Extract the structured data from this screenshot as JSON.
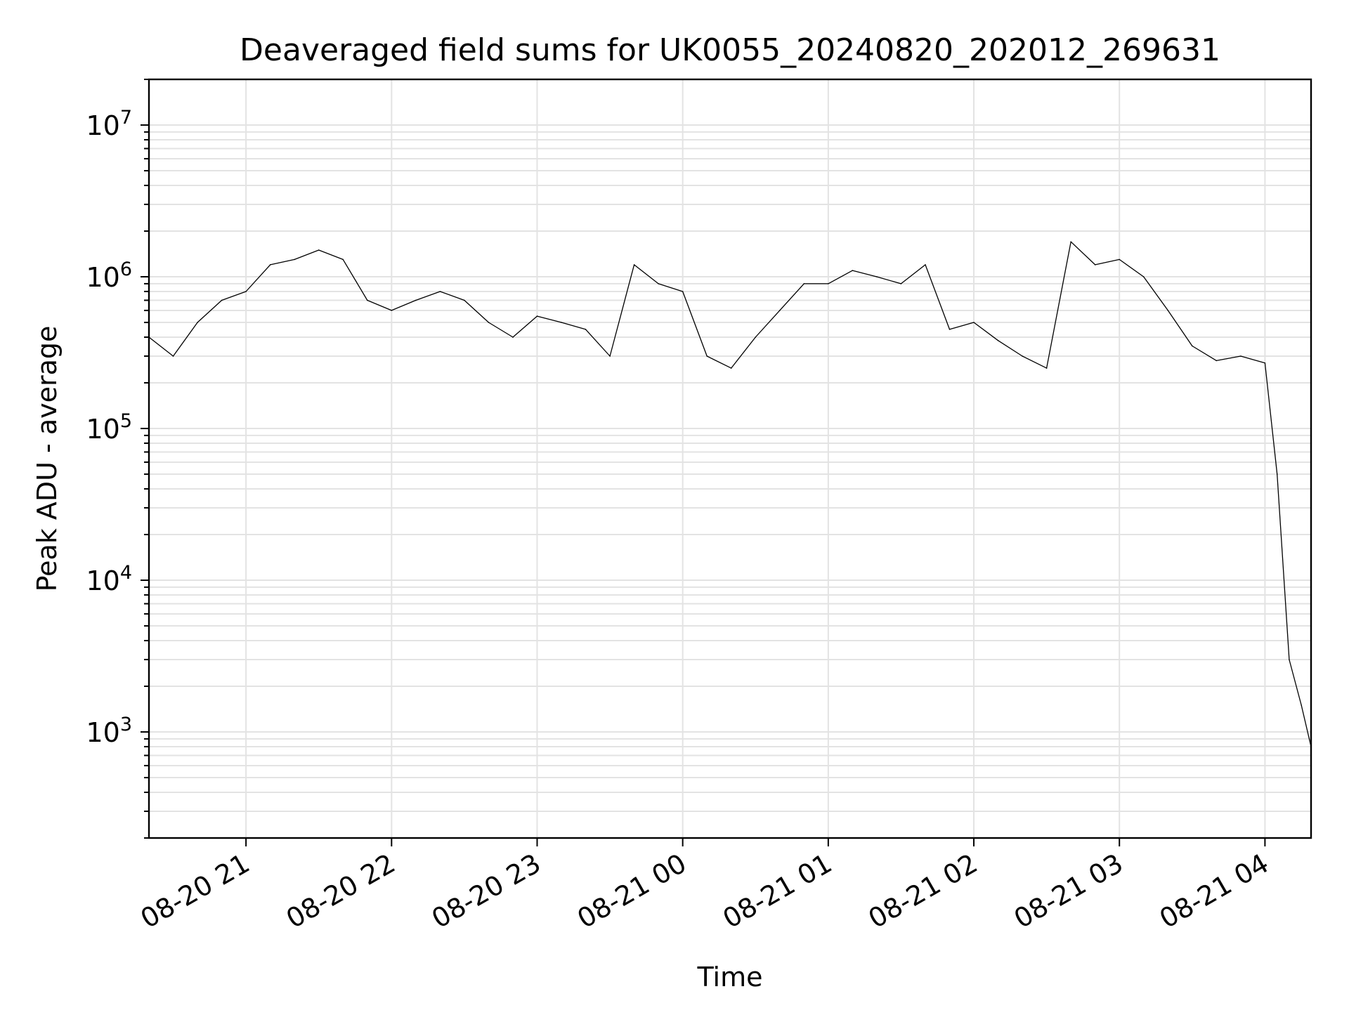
{
  "chart_data": {
    "type": "line",
    "title": "Deaveraged field sums for UK0055_20240820_202012_269631",
    "xlabel": "Time",
    "ylabel": "Peak ADU - average",
    "yscale": "log",
    "xlim": [
      "2024-08-20 20:20",
      "2024-08-21 04:19"
    ],
    "ylim": [
      200,
      20000000
    ],
    "grid": "major and minor",
    "x_ticks": [
      "2024-08-20 21:00",
      "2024-08-20 22:00",
      "2024-08-20 23:00",
      "2024-08-21 00:00",
      "2024-08-21 01:00",
      "2024-08-21 02:00",
      "2024-08-21 03:00",
      "2024-08-21 04:00"
    ],
    "x_tick_labels": [
      "08-20 21",
      "08-20 22",
      "08-20 23",
      "08-21 00",
      "08-21 01",
      "08-21 02",
      "08-21 03",
      "08-21 04"
    ],
    "y_ticks": [
      {
        "value": 1000,
        "base": "10",
        "exp": "3"
      },
      {
        "value": 10000,
        "base": "10",
        "exp": "4"
      },
      {
        "value": 100000,
        "base": "10",
        "exp": "5"
      },
      {
        "value": 1000000,
        "base": "10",
        "exp": "6"
      },
      {
        "value": 10000000,
        "base": "10",
        "exp": "7"
      }
    ],
    "series": [
      {
        "color": "#000000",
        "x": [
          "2024-08-20 20:20",
          "2024-08-20 20:30",
          "2024-08-20 20:40",
          "2024-08-20 20:50",
          "2024-08-20 21:00",
          "2024-08-20 21:10",
          "2024-08-20 21:20",
          "2024-08-20 21:30",
          "2024-08-20 21:40",
          "2024-08-20 21:50",
          "2024-08-20 22:00",
          "2024-08-20 22:10",
          "2024-08-20 22:20",
          "2024-08-20 22:30",
          "2024-08-20 22:40",
          "2024-08-20 22:50",
          "2024-08-20 23:00",
          "2024-08-20 23:10",
          "2024-08-20 23:20",
          "2024-08-20 23:30",
          "2024-08-20 23:40",
          "2024-08-20 23:50",
          "2024-08-21 00:00",
          "2024-08-21 00:10",
          "2024-08-21 00:20",
          "2024-08-21 00:30",
          "2024-08-21 00:40",
          "2024-08-21 00:50",
          "2024-08-21 01:00",
          "2024-08-21 01:10",
          "2024-08-21 01:20",
          "2024-08-21 01:30",
          "2024-08-21 01:40",
          "2024-08-21 01:50",
          "2024-08-21 02:00",
          "2024-08-21 02:10",
          "2024-08-21 02:20",
          "2024-08-21 02:30",
          "2024-08-21 02:40",
          "2024-08-21 02:50",
          "2024-08-21 03:00",
          "2024-08-21 03:10",
          "2024-08-21 03:20",
          "2024-08-21 03:30",
          "2024-08-21 03:40",
          "2024-08-21 03:50",
          "2024-08-21 04:00",
          "2024-08-21 04:05",
          "2024-08-21 04:10",
          "2024-08-21 04:15",
          "2024-08-21 04:19"
        ],
        "values": [
          400000,
          300000,
          500000,
          700000,
          800000,
          1200000,
          1300000,
          1500000,
          1300000,
          700000,
          600000,
          700000,
          800000,
          700000,
          500000,
          400000,
          550000,
          500000,
          450000,
          300000,
          1200000,
          900000,
          800000,
          300000,
          250000,
          400000,
          600000,
          900000,
          900000,
          1100000,
          1000000,
          900000,
          1200000,
          450000,
          500000,
          380000,
          300000,
          250000,
          1700000,
          1200000,
          1300000,
          1000000,
          600000,
          350000,
          280000,
          300000,
          270000,
          50000,
          3000,
          1500,
          800
        ]
      }
    ]
  }
}
